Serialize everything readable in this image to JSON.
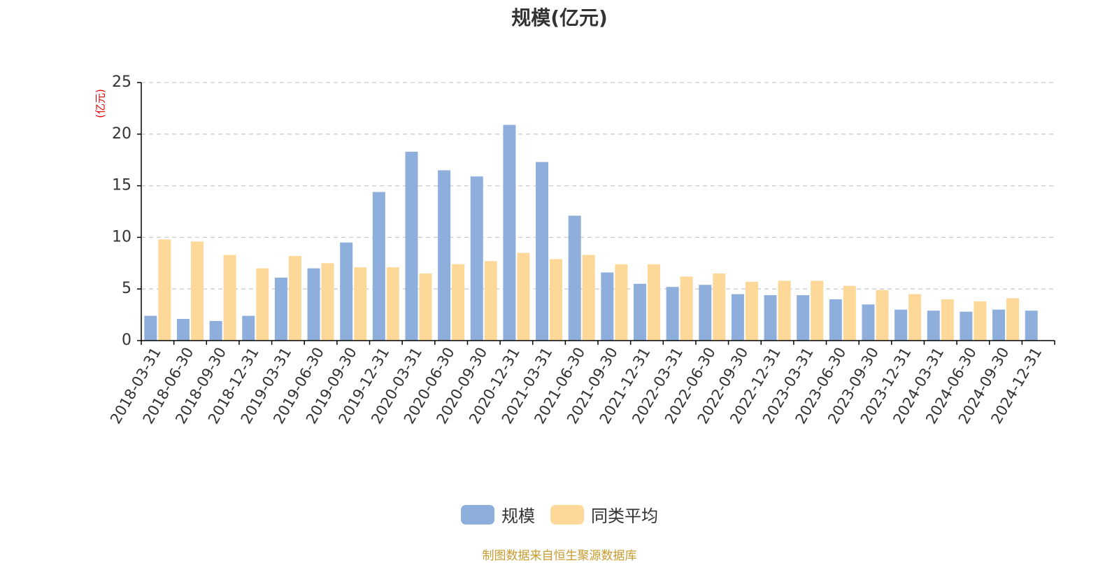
{
  "chart_data": {
    "type": "bar",
    "title": "规模(亿元)",
    "ylabel": "(亿元)",
    "ylim": [
      0,
      25
    ],
    "yticks": [
      0,
      5,
      10,
      15,
      20,
      25
    ],
    "grid": "horizontal-dashed",
    "legend_position": "bottom-center",
    "categories": [
      "2018-03-31",
      "2018-06-30",
      "2018-09-30",
      "2018-12-31",
      "2019-03-31",
      "2019-06-30",
      "2019-09-30",
      "2019-12-31",
      "2020-03-31",
      "2020-06-30",
      "2020-09-30",
      "2020-12-31",
      "2021-03-31",
      "2021-06-30",
      "2021-09-30",
      "2021-12-31",
      "2022-03-31",
      "2022-06-30",
      "2022-09-30",
      "2022-12-31",
      "2023-03-31",
      "2023-06-30",
      "2023-09-30",
      "2023-12-31",
      "2024-03-31",
      "2024-06-30",
      "2024-09-30",
      "2024-12-31"
    ],
    "series": [
      {
        "name": "规模",
        "color": "#8eaedb",
        "values": [
          2.4,
          2.1,
          1.9,
          2.4,
          6.1,
          7.0,
          9.5,
          14.4,
          18.3,
          16.5,
          15.9,
          20.9,
          17.3,
          12.1,
          6.6,
          5.5,
          5.2,
          5.4,
          4.5,
          4.4,
          4.4,
          4.0,
          3.5,
          3.0,
          2.9,
          2.8,
          3.0,
          2.9
        ]
      },
      {
        "name": "同类平均",
        "color": "#fdd898",
        "values": [
          9.8,
          9.6,
          8.3,
          7.0,
          8.2,
          7.5,
          7.1,
          7.1,
          6.5,
          7.4,
          7.7,
          8.5,
          7.9,
          8.3,
          7.4,
          7.4,
          6.2,
          6.5,
          5.7,
          5.8,
          5.8,
          5.3,
          4.9,
          4.5,
          4.0,
          3.8,
          4.1,
          null
        ]
      }
    ]
  },
  "source_note": "制图数据来自恒生聚源数据库",
  "colors": {
    "axis": "#000000",
    "grid": "#cccccc",
    "tick_text": "#333333",
    "unit_text": "#e00000"
  }
}
